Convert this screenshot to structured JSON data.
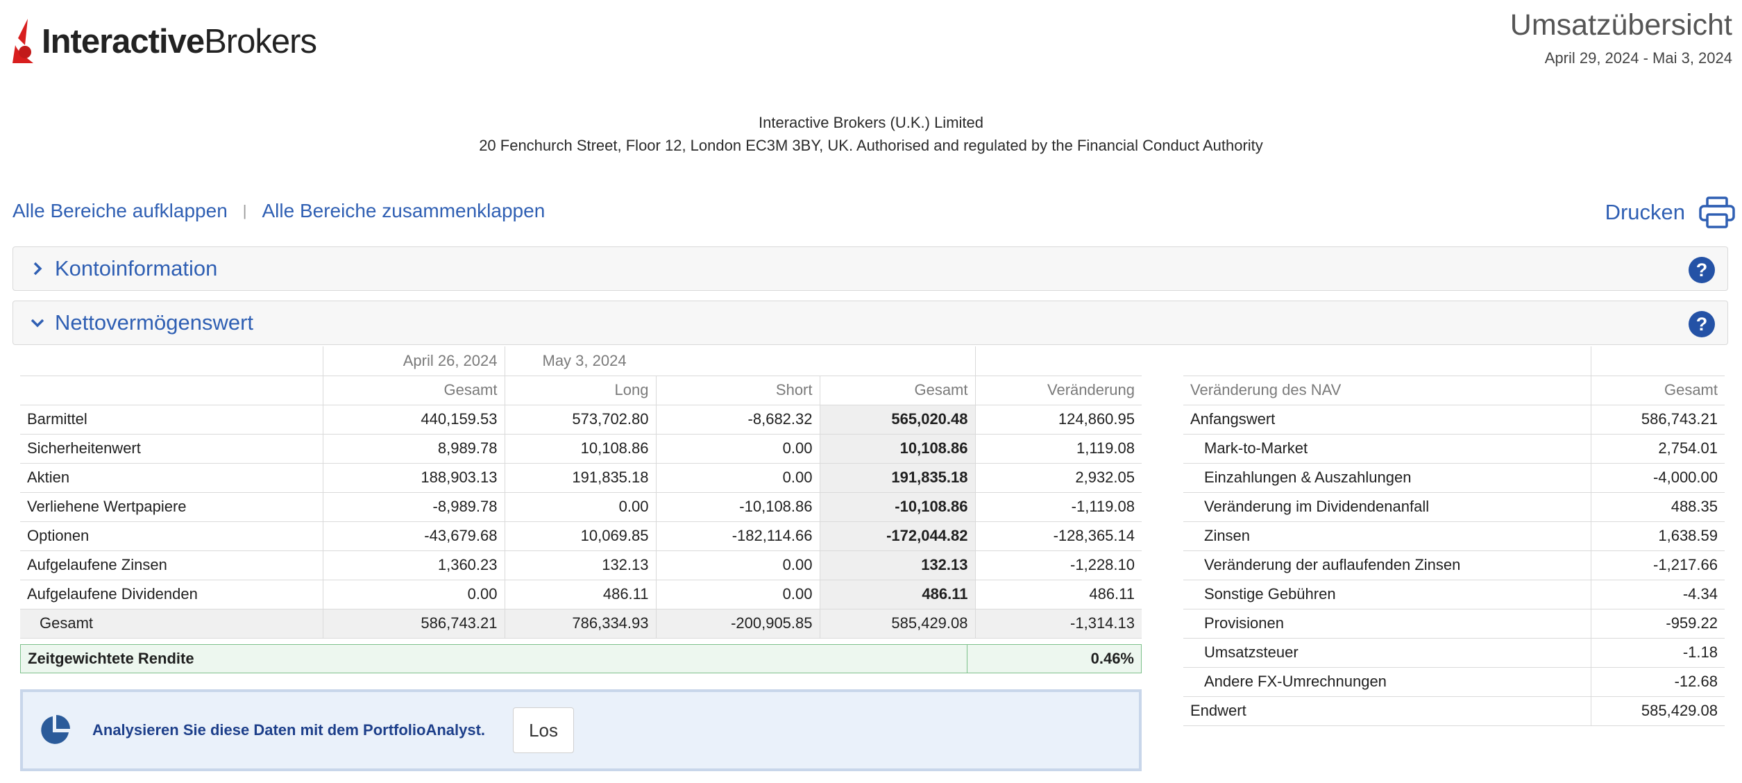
{
  "header": {
    "logo_text_bold": "Interactive",
    "logo_text_light": "Brokers",
    "title": "Umsatzübersicht",
    "date_range": "April 29, 2024 - Mai 3, 2024",
    "company_line1": "Interactive Brokers (U.K.) Limited",
    "company_line2": "20 Fenchurch Street, Floor 12, London EC3M 3BY, UK. Authorised and regulated by the Financial Conduct Authority",
    "brand_color": "#d81e1e"
  },
  "toolbar": {
    "expand_all": "Alle Bereiche aufklappen",
    "separator": "|",
    "collapse_all": "Alle Bereiche zusammenklappen",
    "print": "Drucken",
    "link_color": "#2f5fb3"
  },
  "sections": {
    "account_info": {
      "label": "Kontoinformation",
      "help": "?"
    },
    "nav": {
      "label": "Nettovermögenswert",
      "help": "?"
    }
  },
  "nav_table": {
    "period1": "April 26, 2024",
    "period2": "May 3, 2024",
    "col_headers": [
      "Gesamt",
      "Long",
      "Short",
      "Gesamt",
      "Veränderung"
    ],
    "rows": [
      {
        "label": "Barmittel",
        "v": [
          "440,159.53",
          "573,702.80",
          "-8,682.32",
          "565,020.48",
          "124,860.95"
        ]
      },
      {
        "label": "Sicherheitenwert",
        "v": [
          "8,989.78",
          "10,108.86",
          "0.00",
          "10,108.86",
          "1,119.08"
        ]
      },
      {
        "label": "Aktien",
        "v": [
          "188,903.13",
          "191,835.18",
          "0.00",
          "191,835.18",
          "2,932.05"
        ]
      },
      {
        "label": "Verliehene Wertpapiere",
        "v": [
          "-8,989.78",
          "0.00",
          "-10,108.86",
          "-10,108.86",
          "-1,119.08"
        ]
      },
      {
        "label": "Optionen",
        "v": [
          "-43,679.68",
          "10,069.85",
          "-182,114.66",
          "-172,044.82",
          "-128,365.14"
        ]
      },
      {
        "label": "Aufgelaufene Zinsen",
        "v": [
          "1,360.23",
          "132.13",
          "0.00",
          "132.13",
          "-1,228.10"
        ]
      },
      {
        "label": "Aufgelaufene Dividenden",
        "v": [
          "0.00",
          "486.11",
          "0.00",
          "486.11",
          "486.11"
        ]
      }
    ],
    "total": {
      "label": "Gesamt",
      "v": [
        "586,743.21",
        "786,334.93",
        "-200,905.85",
        "585,429.08",
        "-1,314.13"
      ]
    }
  },
  "rendite": {
    "label": "Zeitgewichtete Rendite",
    "value": "0.46%"
  },
  "analyst": {
    "text": "Analysieren Sie diese Daten mit dem PortfolioAnalyst.",
    "button": "Los"
  },
  "change_table": {
    "header_label": "Veränderung des NAV",
    "header_value": "Gesamt",
    "rows": [
      {
        "label": "Anfangswert",
        "value": "586,743.21",
        "indent": false
      },
      {
        "label": "Mark-to-Market",
        "value": "2,754.01",
        "indent": true
      },
      {
        "label": "Einzahlungen & Auszahlungen",
        "value": "-4,000.00",
        "indent": true
      },
      {
        "label": "Veränderung im Dividendenanfall",
        "value": "488.35",
        "indent": true
      },
      {
        "label": "Zinsen",
        "value": "1,638.59",
        "indent": true
      },
      {
        "label": "Veränderung der auflaufenden Zinsen",
        "value": "-1,217.66",
        "indent": true
      },
      {
        "label": "Sonstige Gebühren",
        "value": "-4.34",
        "indent": true
      },
      {
        "label": "Provisionen",
        "value": "-959.22",
        "indent": true
      },
      {
        "label": "Umsatzsteuer",
        "value": "-1.18",
        "indent": true
      },
      {
        "label": "Andere FX-Umrechnungen",
        "value": "-12.68",
        "indent": true
      },
      {
        "label": "Endwert",
        "value": "585,429.08",
        "indent": false
      }
    ]
  }
}
